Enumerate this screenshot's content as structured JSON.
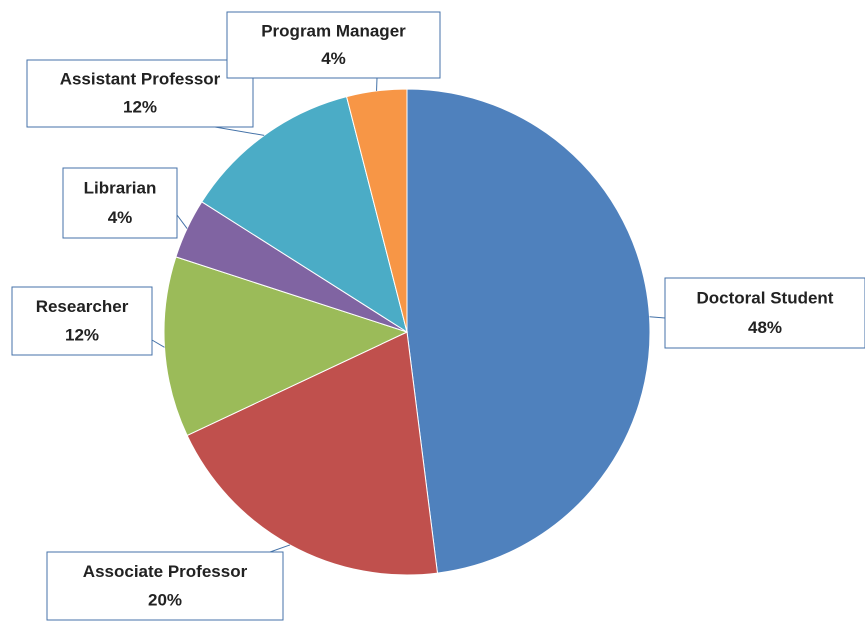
{
  "chart_data": {
    "type": "pie",
    "categories": [
      "Doctoral Student",
      "Associate Professor",
      "Researcher",
      "Librarian",
      "Assistant Professor",
      "Program Manager"
    ],
    "values": [
      48,
      20,
      12,
      4,
      12,
      4
    ],
    "value_labels": [
      "48%",
      "20%",
      "12%",
      "4%",
      "12%",
      "4%"
    ],
    "colors": [
      "#4f81bd",
      "#c0504d",
      "#9bbb59",
      "#8064a2",
      "#4bacc6",
      "#f79646"
    ]
  }
}
